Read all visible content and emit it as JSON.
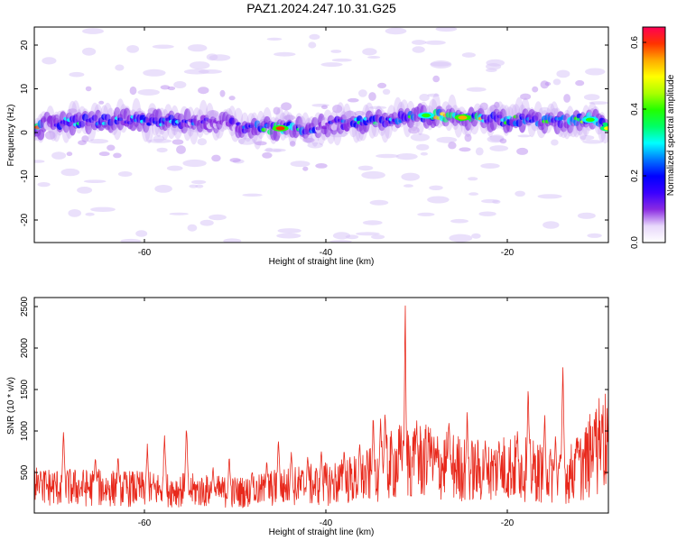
{
  "title": "PAZ1.2024.247.10.31.G25",
  "chart_data": [
    {
      "type": "heatmap",
      "xlabel": "Height of straight line (km)",
      "ylabel": "Frequency (Hz)",
      "xlim": [
        -72,
        -9
      ],
      "ylim": [
        -25,
        25
      ],
      "xticks": [
        "-60",
        "-40",
        "-20"
      ],
      "yticks": [
        "20",
        "10",
        "0",
        "-10",
        "-20"
      ],
      "colorbar": {
        "label": "Normalized spectral amplitude",
        "range": [
          0.0,
          0.65
        ],
        "ticks": [
          "0.0",
          "0.2",
          "0.4",
          "0.6"
        ],
        "colors": [
          "#ffffff",
          "#e8d8fb",
          "#8a2be2",
          "#3a00ff",
          "#0000ff",
          "#0077ff",
          "#00ffff",
          "#00ff66",
          "#22ff00",
          "#aaff00",
          "#ffff00",
          "#ffaa00",
          "#ff3300",
          "#ff0055"
        ]
      },
      "ridge": [
        {
          "x": -71,
          "f": 2.5,
          "a": 0.15
        },
        {
          "x": -69,
          "f": 3.0,
          "a": 0.25
        },
        {
          "x": -66,
          "f": 3.2,
          "a": 0.32
        },
        {
          "x": -62,
          "f": 3.5,
          "a": 0.22
        },
        {
          "x": -58,
          "f": 3.0,
          "a": 0.28
        },
        {
          "x": -54,
          "f": 3.0,
          "a": 0.2
        },
        {
          "x": -50,
          "f": 2.5,
          "a": 0.22
        },
        {
          "x": -48,
          "f": 1.5,
          "a": 0.3
        },
        {
          "x": -45,
          "f": 1.5,
          "a": 0.6
        },
        {
          "x": -42,
          "f": 1.0,
          "a": 0.25
        },
        {
          "x": -39,
          "f": 2.5,
          "a": 0.2
        },
        {
          "x": -36,
          "f": 3.0,
          "a": 0.3
        },
        {
          "x": -33,
          "f": 3.5,
          "a": 0.35
        },
        {
          "x": -29,
          "f": 4.5,
          "a": 0.4
        },
        {
          "x": -25,
          "f": 4.0,
          "a": 0.55
        },
        {
          "x": -22,
          "f": 3.5,
          "a": 0.35
        },
        {
          "x": -18,
          "f": 3.5,
          "a": 0.3
        },
        {
          "x": -14,
          "f": 3.0,
          "a": 0.35
        },
        {
          "x": -11,
          "f": 3.5,
          "a": 0.42
        },
        {
          "x": -9,
          "f": 1.5,
          "a": 0.5
        }
      ]
    },
    {
      "type": "line",
      "xlabel": "Height of straight line (km)",
      "ylabel": "SNR (10 * v/v)",
      "xlim": [
        -72,
        -9
      ],
      "ylim": [
        0,
        2600
      ],
      "xticks": [
        "-60",
        "-40",
        "-20"
      ],
      "yticks": [
        "2500",
        "2000",
        "1500",
        "1000",
        "500"
      ],
      "color": "#e8291c",
      "baseline": [
        [
          -72,
          320
        ],
        [
          -68,
          310
        ],
        [
          -64,
          300
        ],
        [
          -60,
          290
        ],
        [
          -56,
          280
        ],
        [
          -52,
          260
        ],
        [
          -48,
          250
        ],
        [
          -46,
          300
        ],
        [
          -44,
          320
        ],
        [
          -40,
          350
        ],
        [
          -36,
          420
        ],
        [
          -34,
          500
        ],
        [
          -32,
          620
        ],
        [
          -30,
          640
        ],
        [
          -28,
          580
        ],
        [
          -26,
          560
        ],
        [
          -24,
          520
        ],
        [
          -22,
          500
        ],
        [
          -20,
          560
        ],
        [
          -18,
          520
        ],
        [
          -16,
          480
        ],
        [
          -14,
          420
        ],
        [
          -12,
          560
        ],
        [
          -10,
          820
        ],
        [
          -9,
          880
        ]
      ],
      "peaks": [
        [
          -71.3,
          600
        ],
        [
          -68.8,
          1070
        ],
        [
          -65.3,
          780
        ],
        [
          -62.8,
          760
        ],
        [
          -59.6,
          870
        ],
        [
          -57.7,
          1060
        ],
        [
          -55.3,
          1120
        ],
        [
          -52.4,
          620
        ],
        [
          -50.6,
          760
        ],
        [
          -48.1,
          580
        ],
        [
          -46.5,
          700
        ],
        [
          -45.2,
          990
        ],
        [
          -43.8,
          850
        ],
        [
          -42.0,
          780
        ],
        [
          -40.5,
          820
        ],
        [
          -38.0,
          850
        ],
        [
          -36.3,
          920
        ],
        [
          -34.8,
          1280
        ],
        [
          -34.0,
          1190
        ],
        [
          -33.5,
          1430
        ],
        [
          -31.5,
          1040
        ],
        [
          -30.1,
          1030
        ],
        [
          -28.7,
          1060
        ],
        [
          -26.5,
          1220
        ],
        [
          -24.5,
          1280
        ],
        [
          -22.5,
          980
        ],
        [
          -21.0,
          1010
        ],
        [
          -19.0,
          1060
        ],
        [
          -17.8,
          1620
        ],
        [
          -16.0,
          1270
        ],
        [
          -14.8,
          1000
        ],
        [
          -14.0,
          1820
        ],
        [
          -12.5,
          1050
        ],
        [
          -10.5,
          1280
        ],
        [
          -9.7,
          1380
        ]
      ],
      "max_peak": [
        -31.3,
        2600
      ]
    }
  ]
}
